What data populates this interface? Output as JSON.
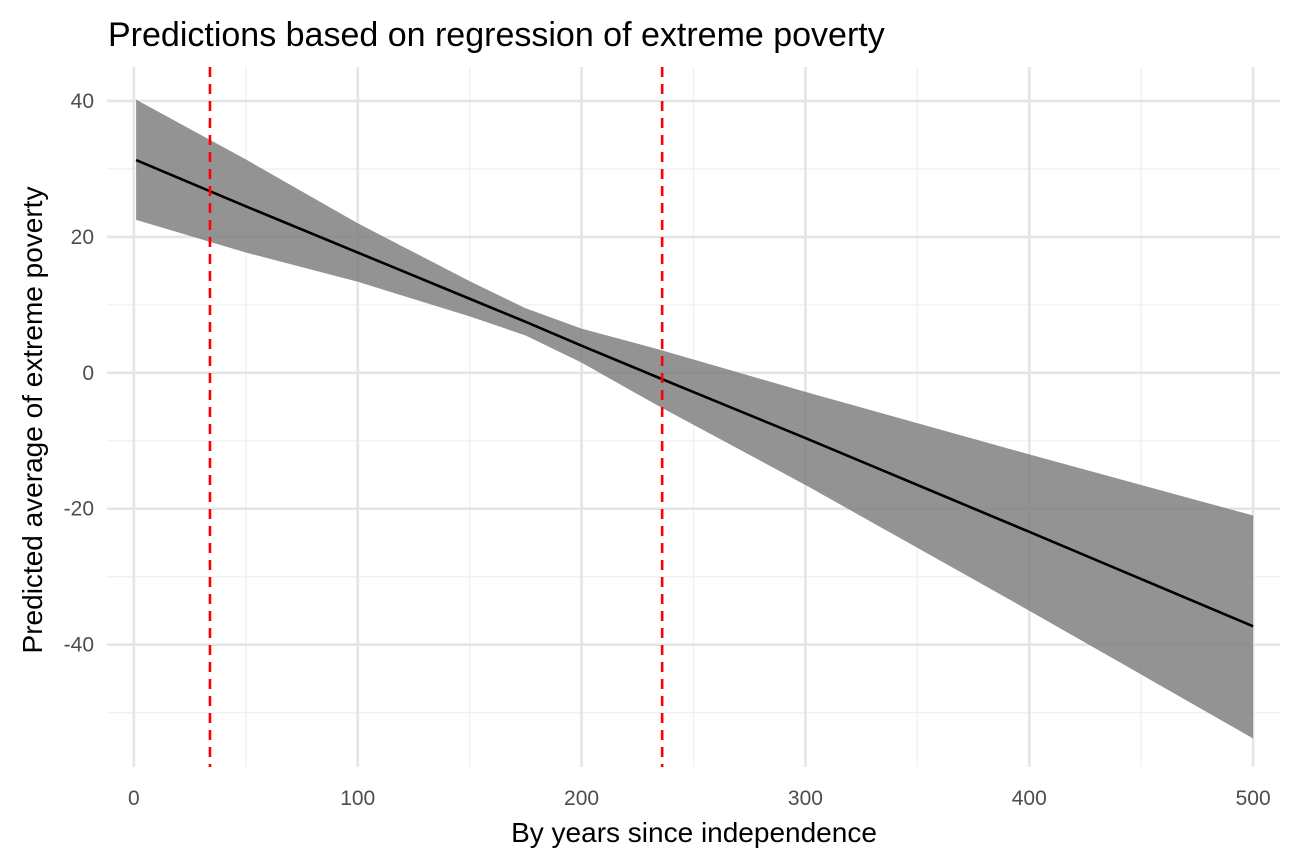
{
  "chart_data": {
    "type": "line",
    "title": "Predictions based on regression of extreme poverty",
    "xlabel": "By years since independence",
    "ylabel": "Predicted average of extreme poverty",
    "xlim": [
      -12,
      512
    ],
    "ylim": [
      -58,
      45
    ],
    "x_ticks": [
      0,
      100,
      200,
      300,
      400,
      500
    ],
    "x_tick_labels": [
      "0",
      "100",
      "200",
      "300",
      "400",
      "500"
    ],
    "x_minor_ticks": [
      50,
      150,
      250,
      350,
      450
    ],
    "y_ticks": [
      -40,
      -20,
      0,
      20,
      40
    ],
    "y_tick_labels": [
      "-40",
      "-20",
      "0",
      "20",
      "40"
    ],
    "y_minor_ticks": [
      -50,
      -30,
      -10,
      10,
      30
    ],
    "grid": true,
    "series": [
      {
        "x": [
          1,
          50,
          100,
          150,
          175,
          200,
          235,
          300,
          400,
          500
        ],
        "y": [
          31.3,
          24.5,
          17.7,
          10.9,
          7.5,
          4.0,
          -0.8,
          -9.6,
          -23.4,
          -37.3
        ],
        "lower": [
          22.5,
          17.7,
          13.4,
          8.3,
          5.5,
          1.5,
          -5.0,
          -16.5,
          -35.0,
          -53.8
        ],
        "upper": [
          40.2,
          31.4,
          22.0,
          13.5,
          9.5,
          6.5,
          3.4,
          -2.8,
          -12.0,
          -21.0
        ]
      }
    ],
    "reference_lines": [
      {
        "x": 34
      },
      {
        "x": 236
      }
    ],
    "colors": {
      "line": "#000000",
      "ribbon": "#808080",
      "reference": "#ff0000",
      "grid_major": "#e5e5e5",
      "grid_minor": "#f0f0f0"
    }
  }
}
